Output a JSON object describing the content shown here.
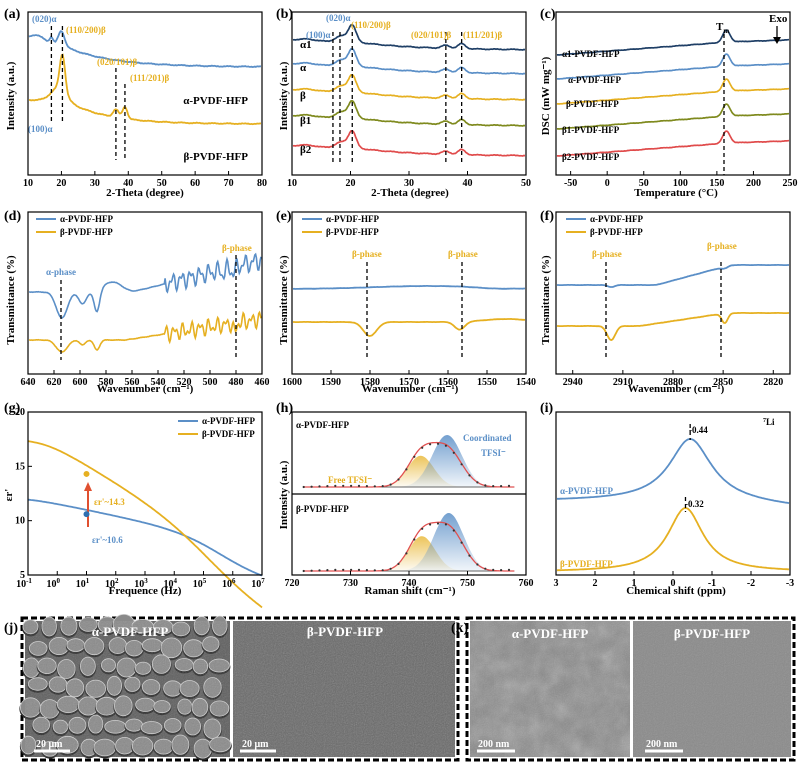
{
  "colors": {
    "alpha": "#5b8fc7",
    "beta": "#e6b021",
    "a1": "#1f3f66",
    "b1": "#7f8a1e",
    "b2": "#e04b4b",
    "fit": "#e05050",
    "axis": "#000000",
    "micro_bg": "#5a5a5a"
  },
  "chart_data": [
    {
      "id": "a",
      "panel_label": "(a)",
      "type": "line",
      "xlabel": "2-Theta (degree)",
      "ylabel": "Intensity (a.u.)",
      "xlim": [
        10,
        80
      ],
      "xticks": [
        "10",
        "20",
        "30",
        "40",
        "50",
        "60",
        "70",
        "80"
      ],
      "series": [
        {
          "name": "α-PVDF-HFP",
          "color": "alpha"
        },
        {
          "name": "β-PVDF-HFP",
          "color": "beta"
        }
      ],
      "peak_labels": [
        {
          "text": "(020)α",
          "x": 17,
          "color": "alpha"
        },
        {
          "text": "(110/200)β",
          "x": 20.3,
          "color": "beta"
        },
        {
          "text": "(100)α",
          "x": 18.2,
          "color": "alpha"
        },
        {
          "text": "(020/101)β",
          "x": 36.3,
          "color": "beta"
        },
        {
          "text": "(111/201)β",
          "x": 39,
          "color": "beta"
        }
      ]
    },
    {
      "id": "b",
      "panel_label": "(b)",
      "type": "line",
      "xlabel": "2-Theta (degree)",
      "ylabel": "Intensity (a.u.)",
      "xlim": [
        10,
        50
      ],
      "xticks": [
        "10",
        "20",
        "30",
        "40",
        "50"
      ],
      "series": [
        {
          "name": "α1",
          "color": "a1"
        },
        {
          "name": "α",
          "color": "alpha"
        },
        {
          "name": "β",
          "color": "beta"
        },
        {
          "name": "β1",
          "color": "b1"
        },
        {
          "name": "β2",
          "color": "b2"
        }
      ],
      "peak_labels": [
        {
          "text": "(100)α",
          "x": 18.2
        },
        {
          "text": "(020)α",
          "x": 17
        },
        {
          "text": "(110/200)β",
          "x": 20.3
        },
        {
          "text": "(020/101)β",
          "x": 36.3
        },
        {
          "text": "(111/201)β",
          "x": 39
        }
      ]
    },
    {
      "id": "c",
      "panel_label": "(c)",
      "type": "line",
      "xlabel": "Temperature (°C)",
      "ylabel": "DSC (mW mg⁻¹)",
      "xlim": [
        -70,
        250
      ],
      "xticks": [
        "-50",
        "0",
        "50",
        "100",
        "150",
        "200",
        "250"
      ],
      "series": [
        {
          "name": "α1-PVDF-HFP",
          "color": "a1"
        },
        {
          "name": "α-PVDF-HFP",
          "color": "alpha"
        },
        {
          "name": "β-PVDF-HFP",
          "color": "beta"
        },
        {
          "name": "β1-PVDF-HFP",
          "color": "b1"
        },
        {
          "name": "β2-PVDF-HFP",
          "color": "b2"
        }
      ],
      "annotations": {
        "tm": "T",
        "tm_sub": "m",
        "exo": "Exo",
        "tm_x": 163
      }
    },
    {
      "id": "d",
      "panel_label": "(d)",
      "type": "line",
      "xlabel": "Wavenumber (cm⁻¹)",
      "ylabel": "Transmittance (%)",
      "xlim": [
        640,
        460
      ],
      "xticks": [
        "640",
        "620",
        "600",
        "580",
        "560",
        "540",
        "520",
        "500",
        "480",
        "460"
      ],
      "series": [
        {
          "name": "α-PVDF-HFP",
          "color": "alpha"
        },
        {
          "name": "β-PVDF-HFP",
          "color": "beta"
        }
      ],
      "phase_labels": [
        {
          "text": "α-phase",
          "x": 614,
          "color": "alpha"
        },
        {
          "text": "β-phase",
          "x": 481,
          "color": "beta"
        }
      ]
    },
    {
      "id": "e",
      "panel_label": "(e)",
      "type": "line",
      "xlabel": "Wavenumber (cm⁻¹)",
      "ylabel": "Transmittance (%)",
      "xlim": [
        1600,
        1540
      ],
      "xticks": [
        "1600",
        "1590",
        "1580",
        "1570",
        "1560",
        "1550",
        "1540"
      ],
      "series": [
        {
          "name": "α-PVDF-HFP",
          "color": "alpha"
        },
        {
          "name": "β-PVDF-HFP",
          "color": "beta"
        }
      ],
      "phase_labels": [
        {
          "text": "β-phase",
          "x": 1580
        },
        {
          "text": "β-phase",
          "x": 1557
        }
      ]
    },
    {
      "id": "f",
      "panel_label": "(f)",
      "type": "line",
      "xlabel": "Wavenumber (cm⁻¹)",
      "ylabel": "Transmittance (%)",
      "xlim": [
        2950,
        2810
      ],
      "xticks": [
        "2940",
        "2910",
        "2880",
        "2850",
        "2820"
      ],
      "series": [
        {
          "name": "α-PVDF-HFP",
          "color": "alpha"
        },
        {
          "name": "β-PVDF-HFP",
          "color": "beta"
        }
      ],
      "phase_labels": [
        {
          "text": "β-phase",
          "x": 2917
        },
        {
          "text": "β-phase",
          "x": 2849
        }
      ]
    },
    {
      "id": "g",
      "panel_label": "(g)",
      "type": "line",
      "xlabel": "Frequence (Hz)",
      "ylabel": "εr'",
      "xscale": "log",
      "xlim": [
        -1,
        7
      ],
      "ylim": [
        5,
        20
      ],
      "yticks": [
        "5",
        "10",
        "15",
        "20"
      ],
      "xtick_base": "10",
      "xtick_exps": [
        "-1",
        "0",
        "1",
        "2",
        "3",
        "4",
        "5",
        "6",
        "7"
      ],
      "series": [
        {
          "name": "α-PVDF-HFP",
          "color": "alpha"
        },
        {
          "name": "β-PVDF-HFP",
          "color": "beta"
        }
      ],
      "values_at_10Hz": {
        "alpha": 10.6,
        "beta": 14.3
      },
      "labels": {
        "beta_prefix": "εr'~",
        "beta_value": "14.3",
        "alpha_prefix": "εr'~",
        "alpha_value": "10.6"
      }
    },
    {
      "id": "h",
      "panel_label": "(h)",
      "type": "line",
      "xlabel": "Raman shift (cm⁻¹)",
      "ylabel": "Intensity (a.u.)",
      "xlim": [
        720,
        760
      ],
      "xticks": [
        "720",
        "730",
        "740",
        "750",
        "760"
      ],
      "subpanels": [
        {
          "name": "α-PVDF-HFP",
          "free_center": 742,
          "coord_center": 746.5
        },
        {
          "name": "β-PVDF-HFP",
          "free_center": 742.2,
          "coord_center": 746.8
        }
      ],
      "labels": {
        "free": "Free TFSI⁻",
        "coordinated": "Coordinated",
        "tfsi": "TFSI⁻"
      }
    },
    {
      "id": "i",
      "panel_label": "(i)",
      "type": "line",
      "xlabel": "Chemical shift (ppm)",
      "nucleus_sup": "7",
      "nucleus": "Li",
      "xlim": [
        3,
        -3
      ],
      "xticks": [
        "3",
        "2",
        "1",
        "0",
        "-1",
        "-2",
        "-3"
      ],
      "series": [
        {
          "name": "α-PVDF-HFP",
          "peak": -0.44,
          "peak_label": "-0.44",
          "color": "alpha"
        },
        {
          "name": "β-PVDF-HFP",
          "peak": -0.32,
          "peak_label": "-0.32",
          "color": "beta"
        }
      ]
    }
  ],
  "images": {
    "j": {
      "panel_label": "(j)",
      "left_title": "α-PVDF-HFP",
      "right_title": "β-PVDF-HFP",
      "scale": "20 μm"
    },
    "k": {
      "panel_label": "(k)",
      "left_title": "α-PVDF-HFP",
      "right_title": "β-PVDF-HFP",
      "scale": "200 nm"
    }
  }
}
